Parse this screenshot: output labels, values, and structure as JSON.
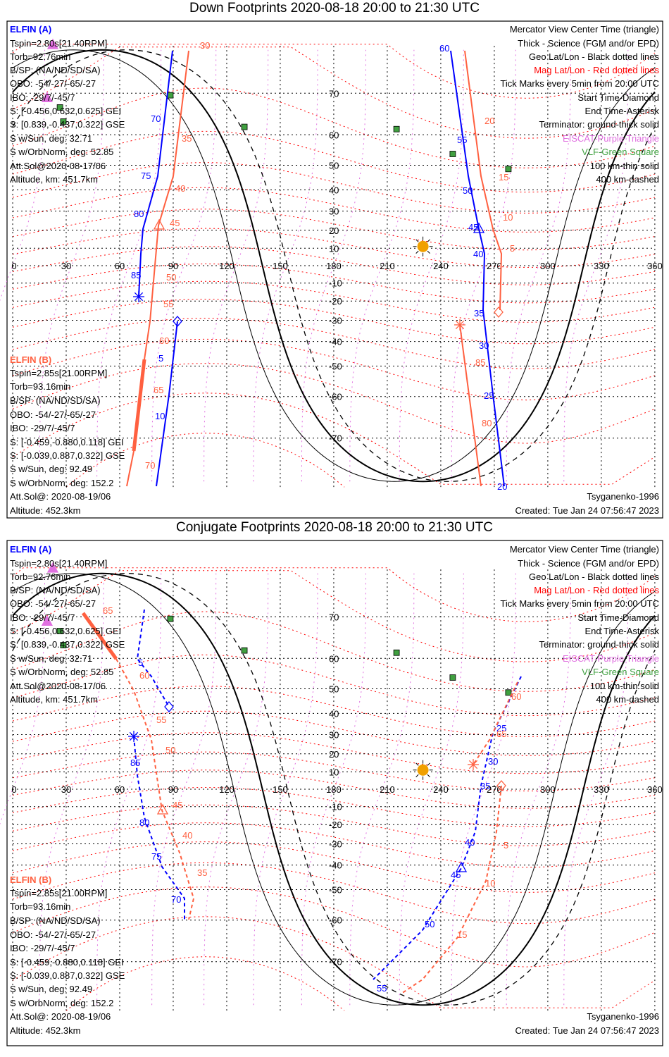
{
  "colors": {
    "elfin_a": "#0000ff",
    "elfin_b": "#ff6040",
    "mag_grid": "#ff0000",
    "eiscat": "#e070e0",
    "vlf": "#40a040",
    "terminator": "#000000",
    "sun": "#f0a000"
  },
  "sun": {
    "lon": 230,
    "lat": 11
  },
  "panels": [
    {
      "title": "Down Footprints 2020-08-18 20:00 to 21:30 UTC",
      "elfin_a": [
        "ELFIN (A)",
        "Tspin=2.80s[21.40RPM]",
        "Torb=92.76min",
        "B/SP: (NA/ND/SD/SA)",
        "OBO: -54/-27/-65/-27",
        "IBO: -29/7/-45/7",
        "S: [-0.456,0.632,0.625] GEI",
        "S: [0.839,-0.437,0.322] GSE",
        "S w/Sun, deg: 32.71",
        "S w/OrbNorm, deg: 52.85",
        "Att.Sol@2020-08-17/06",
        "Altitude, km: 451.7km"
      ],
      "elfin_b": [
        "ELFIN (B)",
        "Tspin=2.85s[21.00RPM]",
        "Torb=93.16min",
        "B/SP: (NA/ND/SD/SA)",
        "OBO: -54/-27/-65/-27",
        "IBO: -29/7/-45/7",
        "S: [-0.459,-0.880,0.118] GEI",
        "S: [-0.039,0.887,0.322] GSE",
        "S w/Sun, deg: 92.49",
        "S w/OrbNorm, deg: 152.2",
        "Att.Sol@: 2020-08-19/06",
        "Altitude: 452.3km"
      ],
      "legend": [
        "Mercator View Center Time (triangle)",
        "Thick - Science (FGM and/or EPD)",
        "Geo Lat/Lon - Black dotted lines",
        "Mag Lat/Lon - Red dotted lines",
        "Tick Marks every 5min from 20:00 UTC",
        "Start Time-Diamond",
        "End Time-Asterisk",
        "Terminator: ground-thick solid",
        "EISCAT-Purple Triangle",
        "VLF-Green Square",
        "100 km-thin solid",
        "400 km-dashed"
      ],
      "footer": [
        "Tsyganenko-1996",
        "Created: Tue Jan 24 07:56:47 2023"
      ],
      "blue_labels": [
        "70",
        "75",
        "80",
        "85",
        "5",
        "10",
        "60",
        "55",
        "50",
        "45",
        "40",
        "35",
        "30",
        "25",
        "20"
      ],
      "red_labels": [
        "30",
        "35",
        "40",
        "45",
        "50",
        "55",
        "60",
        "65",
        "70",
        "20",
        "15",
        "10",
        "5",
        "85",
        "80"
      ]
    },
    {
      "title": "Conjugate Footprints 2020-08-18 20:00 to 21:30 UTC",
      "elfin_a": [
        "ELFIN (A)",
        "Tspin=2.80s[21.40RPM]",
        "Torb=92.76min",
        "B/SP: (NA/ND/SD/SA)",
        "OBO: -54/-27/-65/-27",
        "IBO: -29/7/-45/7",
        "S: [-0.456,0.632,0.625] GEI",
        "S: [0.839,-0.437,0.322] GSE",
        "S w/Sun, deg: 32.71",
        "S w/OrbNorm, deg: 52.85",
        "Att.Sol@2020-08-17/06",
        "Altitude, km: 451.7km"
      ],
      "elfin_b": [
        "ELFIN (B)",
        "Tspin=2.85s[21.00RPM]",
        "Torb=93.16min",
        "B/SP: (NA/ND/SD/SA)",
        "OBO: -54/-27/-65/-27",
        "IBO: -29/7/-45/7",
        "S: [-0.459,-0.880,0.118] GEI",
        "S: [-0.039,0.887,0.322] GSE",
        "S w/Sun, deg: 92.49",
        "S w/OrbNorm, deg: 152.2",
        "Att.Sol@: 2020-08-19/06",
        "Altitude: 452.3km"
      ],
      "legend": [
        "Mercator View Center Time (triangle)",
        "Thick - Science (FGM and/or EPD)",
        "Geo Lat/Lon - Black dotted lines",
        "Mag Lat/Lon - Red dotted lines",
        "Tick Marks every 5min from 20:00 UTC",
        "Start Time-Diamond",
        "End Time-Asterisk",
        "Terminator: ground-thick solid",
        "EISCAT-Purple Triangle",
        "VLF-Green Square",
        "100 km-thin solid",
        "400 km-dashed"
      ],
      "footer": [
        "Tsyganenko-1996",
        "Created: Tue Jan 24 07:56:47 2023"
      ],
      "blue_labels": [
        "5",
        "85",
        "80",
        "75",
        "70",
        "25",
        "30",
        "35",
        "40",
        "45",
        "50",
        "55"
      ],
      "red_labels": [
        "65",
        "60",
        "55",
        "50",
        "45",
        "40",
        "35",
        "60",
        "65",
        "5",
        "10",
        "15"
      ]
    }
  ],
  "axes": {
    "lon_ticks": [
      "0",
      "30",
      "60",
      "90",
      "120",
      "150",
      "180",
      "210",
      "240",
      "270",
      "300",
      "330",
      "360"
    ],
    "lat_ticks": [
      "70",
      "60",
      "50",
      "40",
      "30",
      "20",
      "10",
      "-10",
      "-20",
      "-30",
      "-40",
      "-50",
      "-60",
      "-70"
    ]
  }
}
